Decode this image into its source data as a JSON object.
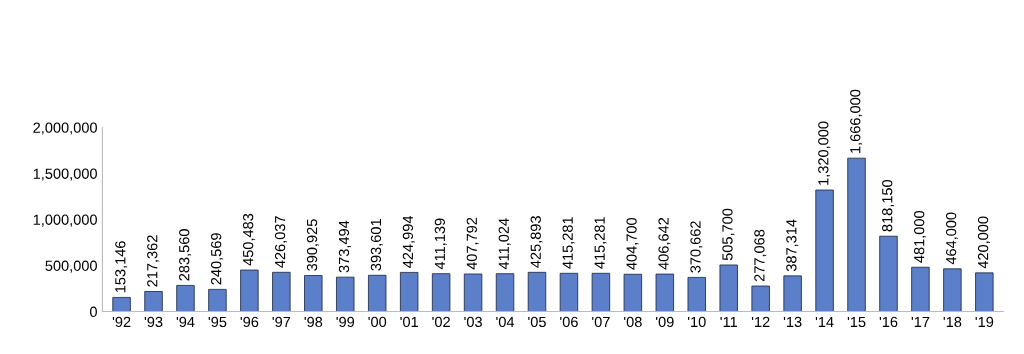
{
  "chart_data": {
    "type": "bar",
    "categories": [
      "'92",
      "'93",
      "'94",
      "'95",
      "'96",
      "'97",
      "'98",
      "'99",
      "'00",
      "'01",
      "'02",
      "'03",
      "'04",
      "'05",
      "'06",
      "'07",
      "'08",
      "'09",
      "'10",
      "'11",
      "'12",
      "'13",
      "'14",
      "'15",
      "'16",
      "'17",
      "'18",
      "'19"
    ],
    "values": [
      153146,
      217362,
      283560,
      240569,
      450483,
      426037,
      390925,
      373494,
      393601,
      424994,
      411139,
      407792,
      411024,
      425893,
      415281,
      415281,
      404700,
      406642,
      370662,
      505700,
      277068,
      387314,
      1320000,
      1666000,
      818150,
      481000,
      464000,
      420000
    ],
    "value_labels": [
      "153,146",
      "217,362",
      "283,560",
      "240,569",
      "450,483",
      "426,037",
      "390,925",
      "373,494",
      "393,601",
      "424,994",
      "411,139",
      "407,792",
      "411,024",
      "425,893",
      "415,281",
      "415,281",
      "404,700",
      "406,642",
      "370,662",
      "505,700",
      "277,068",
      "387,314",
      "1,320,000",
      "1,666,000",
      "818,150",
      "481,000",
      "464,000",
      "420,000"
    ],
    "color": "#5b7fc9",
    "ylim": [
      0,
      2000000
    ],
    "yticks": [
      0,
      {
        "value": 500000,
        "label": "500,000"
      },
      {
        "value": 1000000,
        "label": "1,000,000"
      },
      {
        "value": 1500000,
        "label": "1,500,000"
      },
      {
        "value": 2000000,
        "label": "2,000,000"
      }
    ],
    "grid": false
  }
}
